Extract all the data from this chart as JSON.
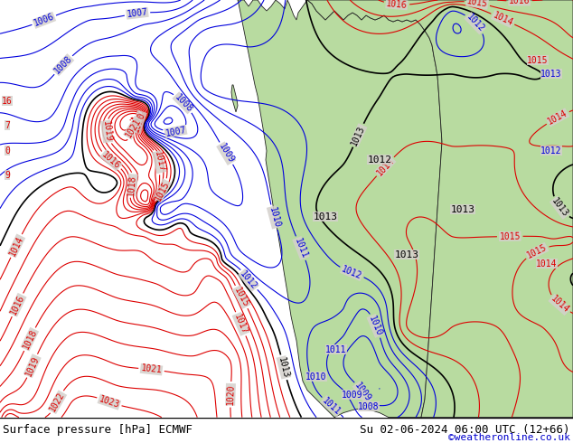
{
  "bottom_left_text": "Surface pressure [hPa] ECMWF",
  "bottom_right_text": "Su 02-06-2024 06:00 UTC (12+66)",
  "bottom_credit": "©weatheronline.co.uk",
  "sea_color": "#d4d0cc",
  "land_color": "#b8dba0",
  "fig_width": 6.34,
  "fig_height": 4.9,
  "dpi": 100,
  "text_color_left": "#000000",
  "text_color_right": "#000000",
  "text_color_credit": "#0000cc",
  "font_size_bottom": 9,
  "font_size_credit": 8
}
